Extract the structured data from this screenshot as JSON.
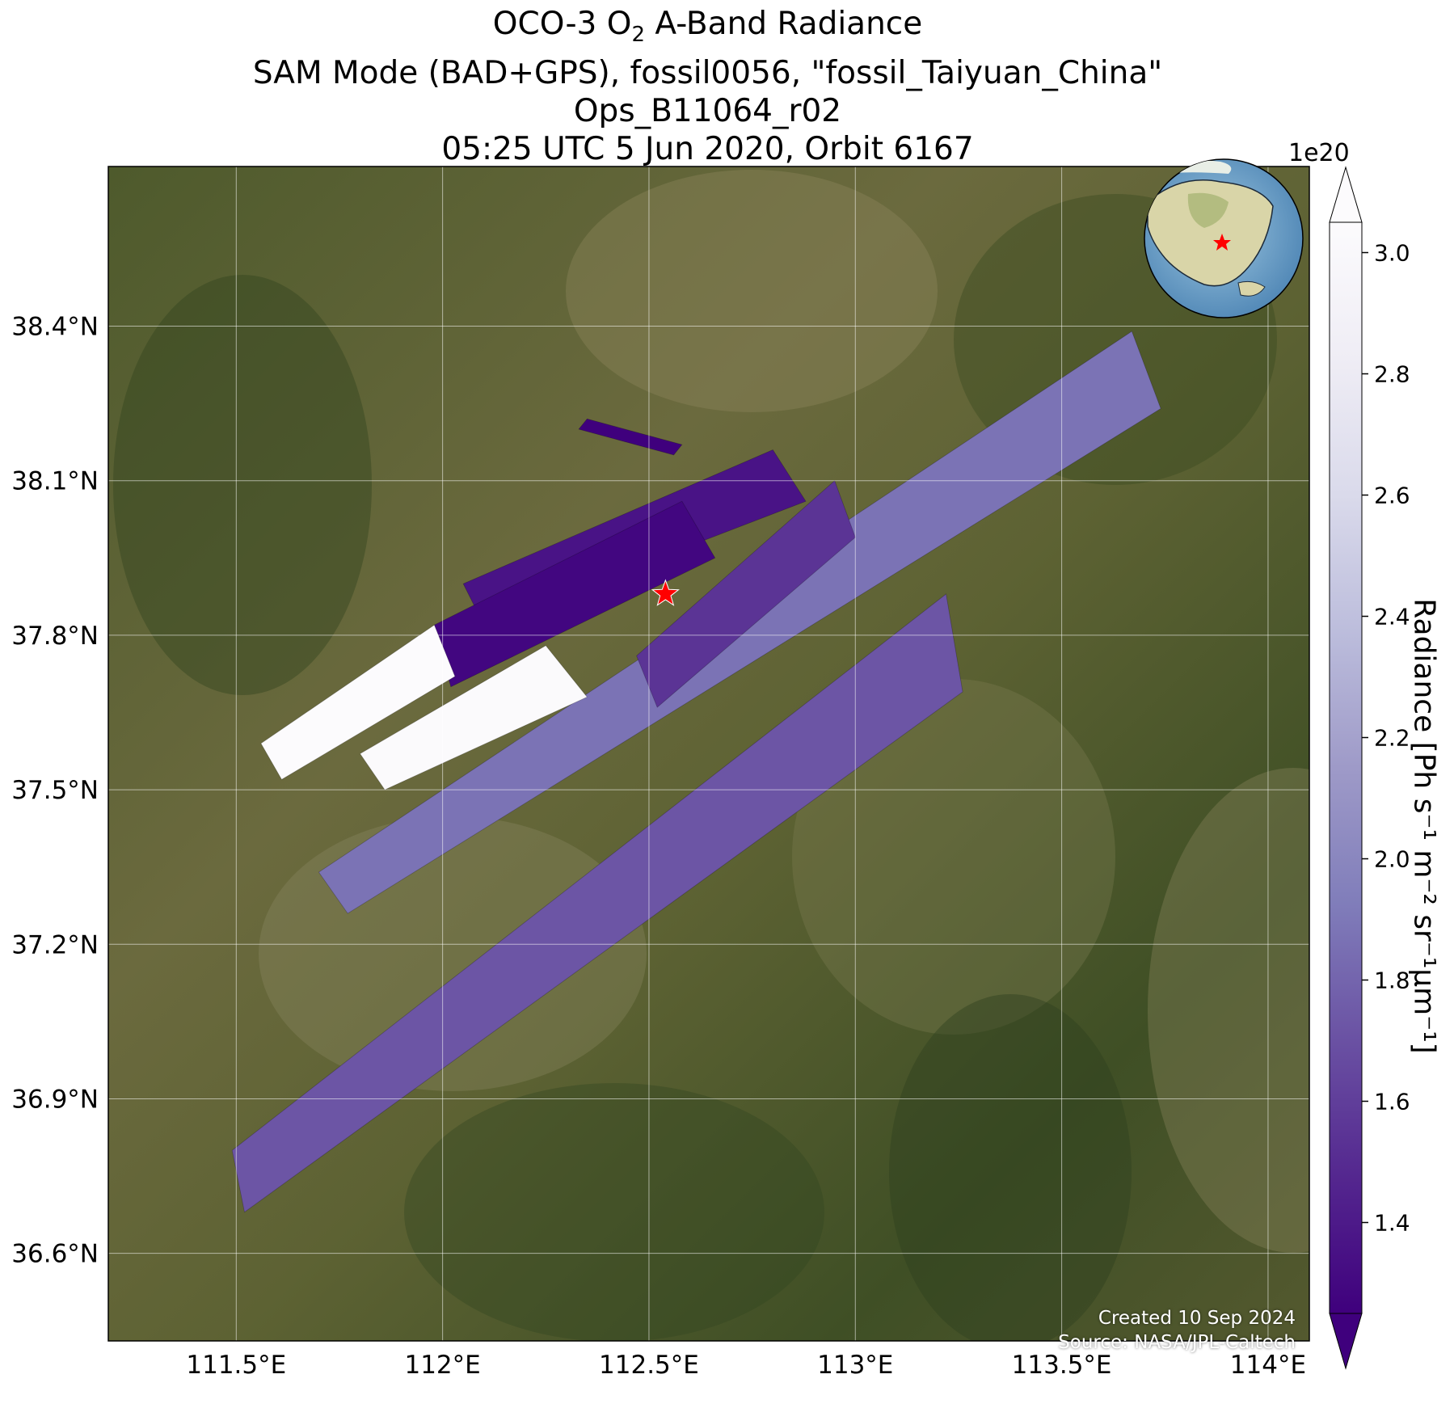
{
  "title": {
    "line1_pre": "OCO-3 O",
    "line1_sub": "2",
    "line1_post": " A-Band Radiance",
    "line2": "SAM Mode (BAD+GPS), fossil0056, \"fossil_Taiyuan_China\"",
    "line3": "Ops_B11064_r02",
    "line4": "05:25 UTC 5 Jun 2020, Orbit 6167"
  },
  "map": {
    "lon_range": [
      111.19,
      114.1
    ],
    "lat_range": [
      36.43,
      38.71
    ],
    "lat_ticks": [
      {
        "value": 38.4,
        "label": "38.4°N"
      },
      {
        "value": 38.1,
        "label": "38.1°N"
      },
      {
        "value": 37.8,
        "label": "37.8°N"
      },
      {
        "value": 37.5,
        "label": "37.5°N"
      },
      {
        "value": 37.2,
        "label": "37.2°N"
      },
      {
        "value": 36.9,
        "label": "36.9°N"
      },
      {
        "value": 36.6,
        "label": "36.6°N"
      }
    ],
    "lon_ticks": [
      {
        "value": 111.5,
        "label": "111.5°E"
      },
      {
        "value": 112.0,
        "label": "112°E"
      },
      {
        "value": 112.5,
        "label": "112.5°E"
      },
      {
        "value": 113.0,
        "label": "113°E"
      },
      {
        "value": 113.5,
        "label": "113.5°E"
      },
      {
        "value": 114.0,
        "label": "114°E"
      }
    ],
    "target": {
      "name": "fossil_Taiyuan_China",
      "lon": 112.54,
      "lat": 37.88
    },
    "swaths": [
      {
        "corners": [
          [
            111.49,
            36.8
          ],
          [
            113.22,
            37.88
          ],
          [
            113.26,
            37.69
          ],
          [
            111.52,
            36.68
          ]
        ],
        "radiance": 1.78
      },
      {
        "corners": [
          [
            111.7,
            37.34
          ],
          [
            113.67,
            38.39
          ],
          [
            113.74,
            38.24
          ],
          [
            111.77,
            37.26
          ]
        ],
        "radiance": 1.92
      },
      {
        "corners": [
          [
            112.47,
            37.76
          ],
          [
            112.95,
            38.1
          ],
          [
            113.0,
            37.99
          ],
          [
            112.52,
            37.66
          ]
        ],
        "radiance": 1.62
      },
      {
        "corners": [
          [
            112.05,
            37.9
          ],
          [
            112.8,
            38.16
          ],
          [
            112.88,
            38.06
          ],
          [
            112.1,
            37.82
          ]
        ],
        "radiance": 1.45
      },
      {
        "corners": [
          [
            111.98,
            37.82
          ],
          [
            112.58,
            38.06
          ],
          [
            112.66,
            37.95
          ],
          [
            112.02,
            37.7
          ]
        ],
        "radiance": 1.38
      },
      {
        "corners": [
          [
            111.8,
            37.57
          ],
          [
            112.25,
            37.78
          ],
          [
            112.35,
            37.68
          ],
          [
            111.86,
            37.5
          ]
        ],
        "radiance": 2.98
      },
      {
        "corners": [
          [
            111.56,
            37.59
          ],
          [
            111.98,
            37.82
          ],
          [
            112.03,
            37.72
          ],
          [
            111.61,
            37.52
          ]
        ],
        "radiance": 3.0
      },
      {
        "corners": [
          [
            112.35,
            38.22
          ],
          [
            112.58,
            38.17
          ],
          [
            112.56,
            38.15
          ],
          [
            112.33,
            38.2
          ]
        ],
        "radiance": 1.35
      }
    ]
  },
  "colorbar": {
    "multiplier": "1e20",
    "label": "Radiance [Ph s⁻¹ m⁻² sr⁻¹μm⁻¹]",
    "range": [
      1.25,
      3.05
    ],
    "ticks": [
      {
        "value": 1.4,
        "label": "1.4"
      },
      {
        "value": 1.6,
        "label": "1.6"
      },
      {
        "value": 1.8,
        "label": "1.8"
      },
      {
        "value": 2.0,
        "label": "2.0"
      },
      {
        "value": 2.2,
        "label": "2.2"
      },
      {
        "value": 2.4,
        "label": "2.4"
      },
      {
        "value": 2.6,
        "label": "2.6"
      },
      {
        "value": 2.8,
        "label": "2.8"
      },
      {
        "value": 3.0,
        "label": "3.0"
      }
    ],
    "colors": [
      "#3f007d",
      "#54278f",
      "#6a51a3",
      "#807dba",
      "#9e9ac8",
      "#bcbddc",
      "#dadaeb",
      "#efedf5",
      "#fcfbfd"
    ]
  },
  "credits": {
    "created": "Created 10 Sep 2024",
    "source": "Source: NASA/JPL-Caltech"
  }
}
